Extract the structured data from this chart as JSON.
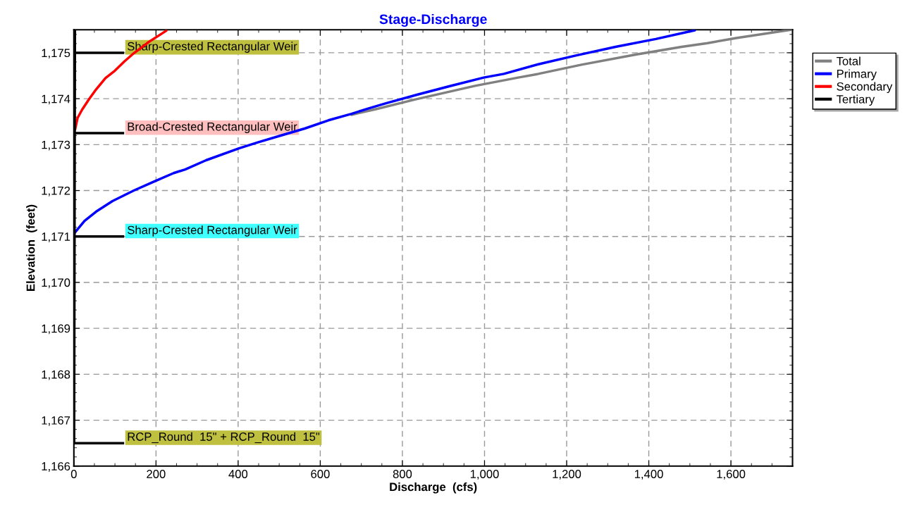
{
  "chart_data": {
    "type": "line",
    "title": "Stage-Discharge",
    "xlabel": "Discharge  (cfs)",
    "ylabel": "Elevation  (feet)",
    "xlim": [
      0,
      1750
    ],
    "ylim": [
      1166,
      1175.5
    ],
    "xticks": [
      0,
      200,
      400,
      600,
      800,
      {
        "value": 1000,
        "label": "1,000"
      },
      {
        "value": 1200,
        "label": "1,200"
      },
      {
        "value": 1400,
        "label": "1,400"
      },
      {
        "value": 1600,
        "label": "1,600"
      }
    ],
    "yticks": [
      {
        "value": 1166,
        "label": "1,166"
      },
      {
        "value": 1167,
        "label": "1,167"
      },
      {
        "value": 1168,
        "label": "1,168"
      },
      {
        "value": 1169,
        "label": "1,169"
      },
      {
        "value": 1170,
        "label": "1,170"
      },
      {
        "value": 1171,
        "label": "1,171"
      },
      {
        "value": 1172,
        "label": "1,172"
      },
      {
        "value": 1173,
        "label": "1,173"
      },
      {
        "value": 1174,
        "label": "1,174"
      },
      {
        "value": 1175,
        "label": "1,175"
      }
    ],
    "grid": true,
    "legend": "top right",
    "line_style": "solid",
    "marker": "none",
    "series": [
      {
        "name": "Total",
        "color": "#808080",
        "x": [
          676,
          739,
          830,
          928,
          977,
          1082,
          1131,
          1236,
          1368,
          1480,
          1543,
          1613,
          1746
        ],
        "values": [
          1173.65,
          1173.78,
          1173.98,
          1174.18,
          1174.28,
          1174.46,
          1174.54,
          1174.74,
          1174.96,
          1175.13,
          1175.21,
          1175.32,
          1175.5
        ]
      },
      {
        "name": "Primary",
        "color": "#0000ff",
        "x": [
          0,
          26,
          54,
          94,
          146,
          191,
          243,
          271,
          322,
          402,
          448,
          505,
          562,
          620,
          676,
          718,
          760,
          837,
          914,
          998,
          1047,
          1131,
          1222,
          1319,
          1417,
          1512
        ],
        "values": [
          1171.06,
          1171.34,
          1171.54,
          1171.77,
          1172.0,
          1172.18,
          1172.38,
          1172.46,
          1172.66,
          1172.92,
          1173.05,
          1173.2,
          1173.35,
          1173.53,
          1173.67,
          1173.79,
          1173.9,
          1174.09,
          1174.27,
          1174.46,
          1174.54,
          1174.75,
          1174.94,
          1175.13,
          1175.3,
          1175.49
        ]
      },
      {
        "name": "Secondary",
        "color": "#ff0000",
        "x": [
          3,
          9,
          20,
          37,
          54,
          77,
          100,
          123,
          146,
          180,
          225
        ],
        "values": [
          1173.33,
          1173.58,
          1173.76,
          1173.99,
          1174.2,
          1174.45,
          1174.61,
          1174.81,
          1174.99,
          1175.22,
          1175.48
        ]
      },
      {
        "name": "Tertiary",
        "color": "#000000",
        "x": [
          0,
          2
        ],
        "values": [
          1166.5,
          1175.5
        ]
      }
    ],
    "ref_lines": [
      {
        "axis": "y",
        "value": 1175.0,
        "label": "Sharp-Crested Rectangular Weir",
        "color": "#000000"
      },
      {
        "axis": "y",
        "value": 1173.25,
        "label": "Broad-Crested Rectangular Weir",
        "color": "#000000"
      },
      {
        "axis": "y",
        "value": 1171.0,
        "label": "Sharp-Crested Rectangular Weir",
        "color": "#000000"
      },
      {
        "axis": "y",
        "value": 1166.5,
        "label": "RCP_Round  15\" + RCP_Round  15\"",
        "color": "#000000"
      }
    ]
  }
}
